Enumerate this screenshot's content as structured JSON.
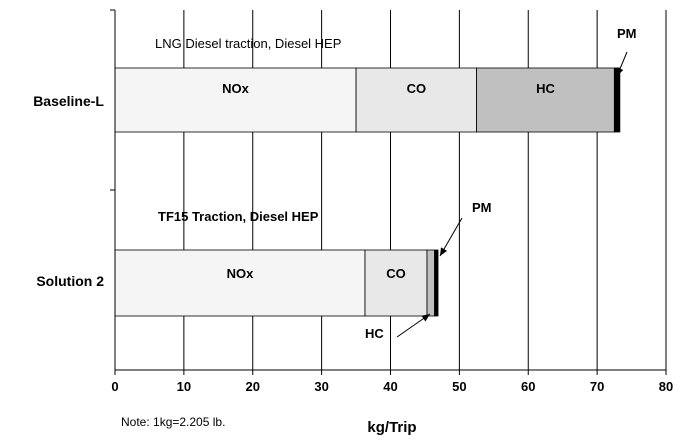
{
  "chart_data": {
    "type": "bar",
    "orientation": "horizontal",
    "stacked": true,
    "xlabel": "kg/Trip",
    "xlim": [
      0,
      80
    ],
    "xticks": [
      0,
      10,
      20,
      30,
      40,
      50,
      60,
      70,
      80
    ],
    "grid": "vertical",
    "note": "Note: 1kg=2.205 lb.",
    "colors": {
      "NOx": "#f5f5f5",
      "CO": "#e8e8e8",
      "HC": "#c0c0c0",
      "PM": "#000000"
    },
    "categories": [
      {
        "label": "Baseline-L",
        "caption": "LNG  Diesel traction, Diesel HEP",
        "segments": [
          {
            "name": "NOx",
            "value": 35.0,
            "label": "NOx"
          },
          {
            "name": "CO",
            "value": 17.5,
            "label": "CO"
          },
          {
            "name": "HC",
            "value": 20.0,
            "label": "HC"
          },
          {
            "name": "PM",
            "value": 0.8,
            "label": "PM"
          }
        ]
      },
      {
        "label": "Solution 2",
        "caption": "TF15 Traction, Diesel HEP",
        "segments": [
          {
            "name": "NOx",
            "value": 36.3,
            "label": "NOx"
          },
          {
            "name": "CO",
            "value": 9.0,
            "label": "CO"
          },
          {
            "name": "HC",
            "value": 1.1,
            "label": "HC"
          },
          {
            "name": "PM",
            "value": 0.5,
            "label": "PM"
          }
        ]
      }
    ]
  }
}
